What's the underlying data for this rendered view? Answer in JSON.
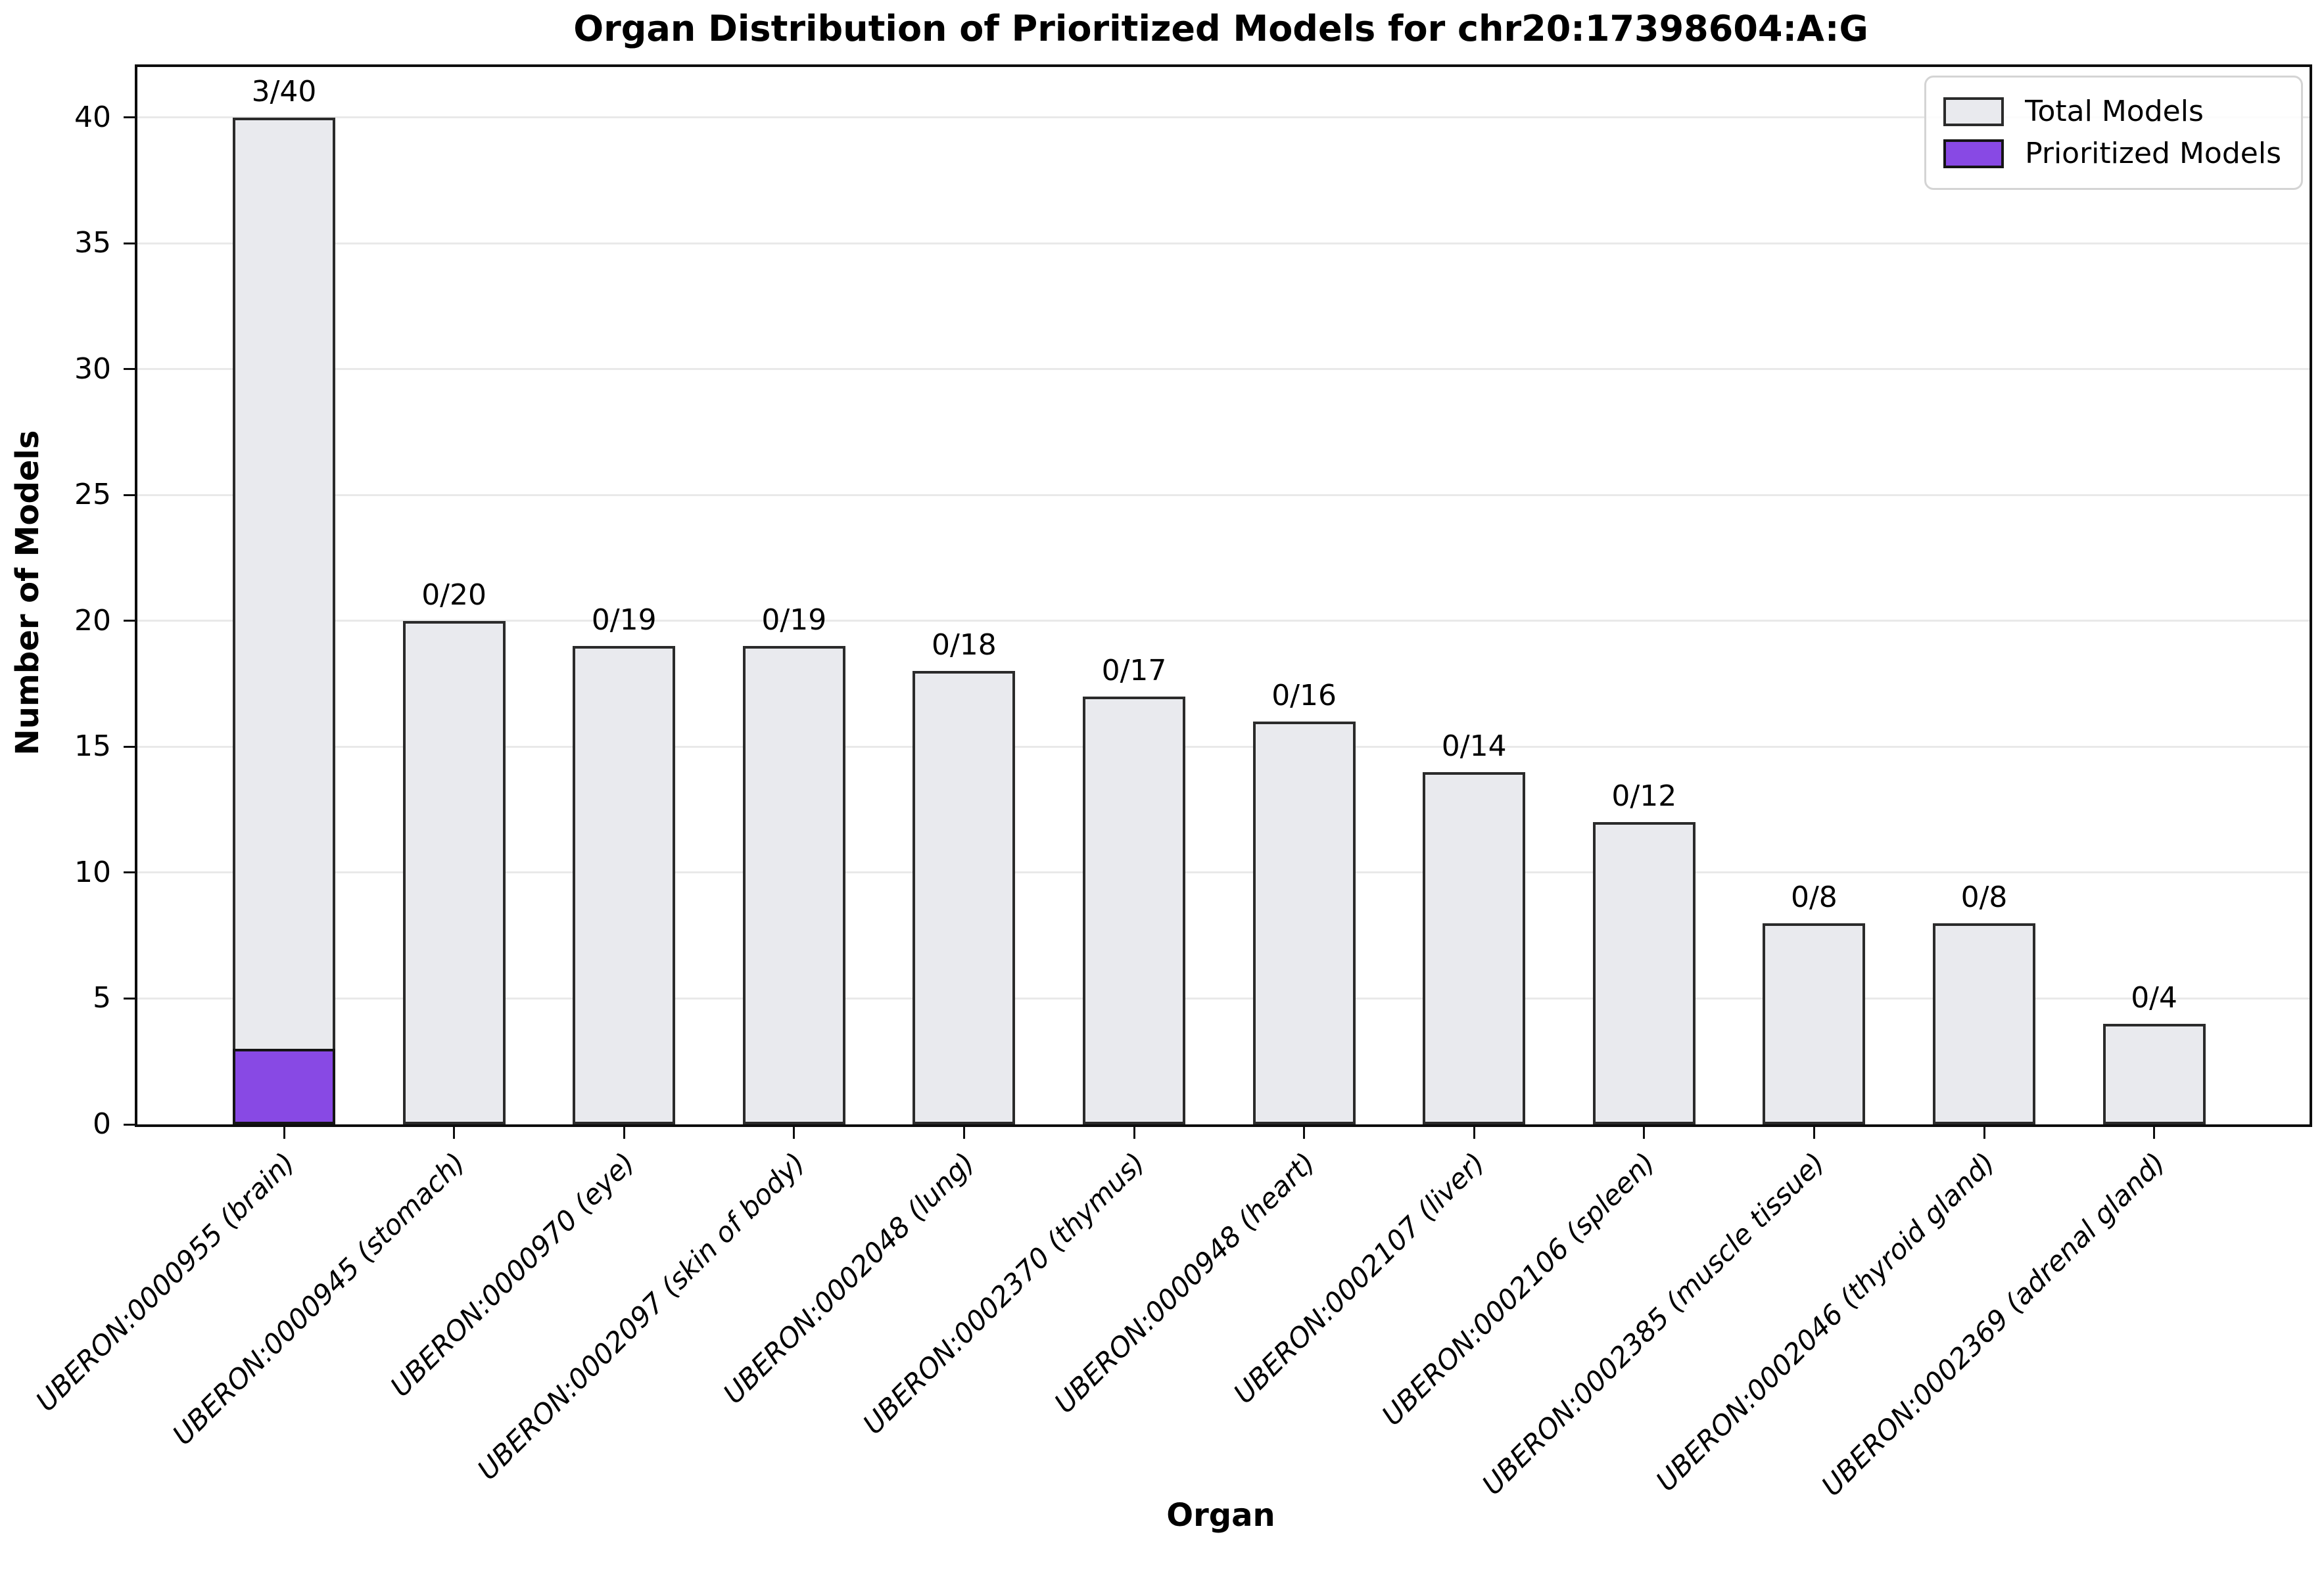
{
  "chart_data": {
    "type": "bar",
    "title": "Organ Distribution of Prioritized Models for chr20:17398604:A:G",
    "xlabel": "Organ",
    "ylabel": "Number of Models",
    "ylim": [
      0,
      42
    ],
    "yticks": [
      0,
      5,
      10,
      15,
      20,
      25,
      30,
      35,
      40
    ],
    "grid": "horizontal",
    "legend": {
      "position": "upper right",
      "entries": [
        {
          "label": "Total Models",
          "color": "#e9eaee",
          "edge": "#2b2b2b"
        },
        {
          "label": "Prioritized Models",
          "color": "#8849e4",
          "edge": "#151515"
        }
      ]
    },
    "categories": [
      "UBERON:0000955 (brain)",
      "UBERON:0000945 (stomach)",
      "UBERON:0000970 (eye)",
      "UBERON:0002097 (skin of body)",
      "UBERON:0002048 (lung)",
      "UBERON:0002370 (thymus)",
      "UBERON:0000948 (heart)",
      "UBERON:0002107 (liver)",
      "UBERON:0002106 (spleen)",
      "UBERON:0002385 (muscle tissue)",
      "UBERON:0002046 (thyroid gland)",
      "UBERON:0002369 (adrenal gland)"
    ],
    "series": [
      {
        "name": "Total Models",
        "color": "#e9eaee",
        "edge": "#2b2b2b",
        "values": [
          40,
          20,
          19,
          19,
          18,
          17,
          16,
          14,
          12,
          8,
          8,
          4
        ]
      },
      {
        "name": "Prioritized Models",
        "color": "#8849e4",
        "edge": "#151515",
        "values": [
          3,
          0,
          0,
          0,
          0,
          0,
          0,
          0,
          0,
          0,
          0,
          0
        ]
      }
    ],
    "bar_labels": [
      "3/40",
      "0/20",
      "0/19",
      "0/19",
      "0/18",
      "0/17",
      "0/16",
      "0/14",
      "0/12",
      "0/8",
      "0/8",
      "0/4"
    ]
  }
}
